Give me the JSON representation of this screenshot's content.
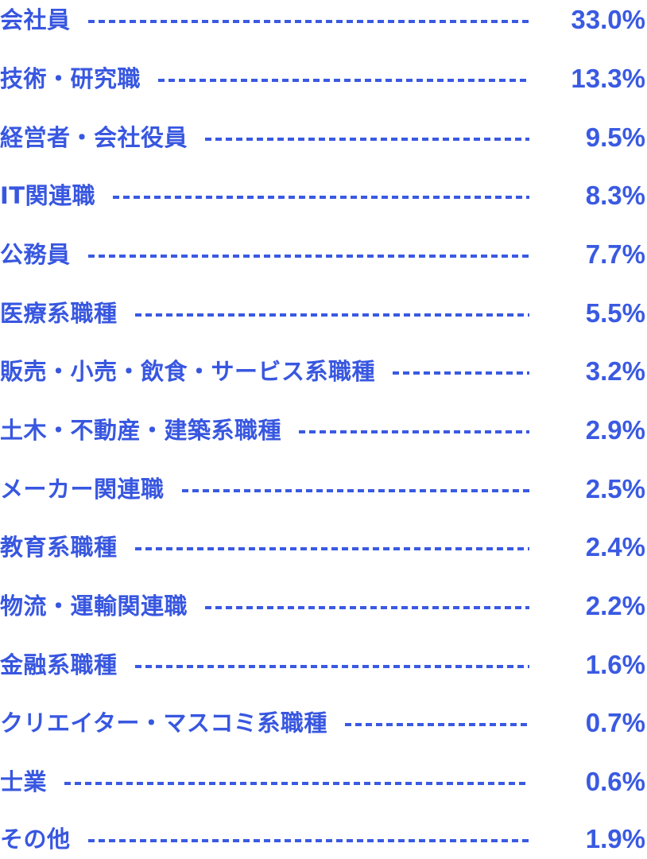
{
  "occupations": [
    {
      "label": "会社員",
      "value": "33.0%"
    },
    {
      "label": "技術・研究職",
      "value": "13.3%"
    },
    {
      "label": "経営者・会社役員",
      "value": "9.5%"
    },
    {
      "label": "IT関連職",
      "value": "8.3%"
    },
    {
      "label": "公務員",
      "value": "7.7%"
    },
    {
      "label": "医療系職種",
      "value": "5.5%"
    },
    {
      "label": "販売・小売・飲食・サービス系職種",
      "value": "3.2%"
    },
    {
      "label": "土木・不動産・建築系職種",
      "value": "2.9%"
    },
    {
      "label": "メーカー関連職",
      "value": "2.5%"
    },
    {
      "label": "教育系職種",
      "value": "2.4%"
    },
    {
      "label": "物流・運輸関連職",
      "value": "2.2%"
    },
    {
      "label": "金融系職種",
      "value": "1.6%"
    },
    {
      "label": "クリエイター・マスコミ系職種",
      "value": "0.7%"
    },
    {
      "label": "士業",
      "value": "0.6%"
    },
    {
      "label": "その他",
      "value": "1.9%"
    }
  ],
  "colors": {
    "text": "#3857e0",
    "leader": "#3a5ae2",
    "background": "#ffffff"
  }
}
